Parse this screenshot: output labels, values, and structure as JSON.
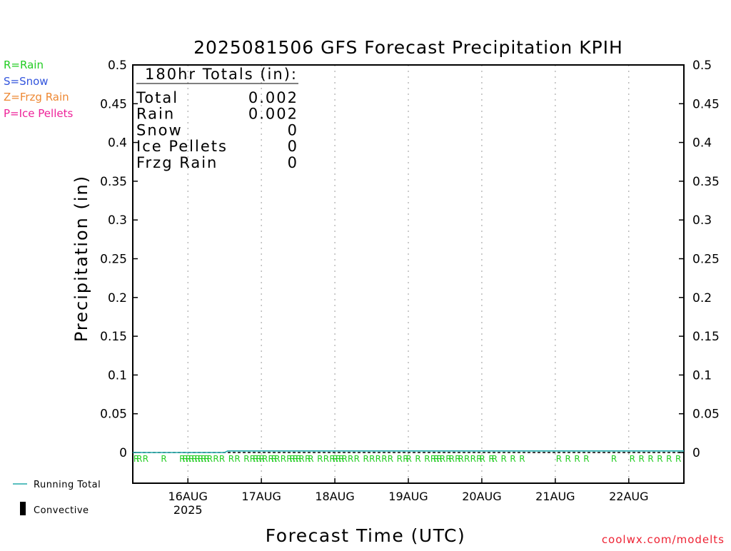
{
  "chart_data": {
    "type": "line",
    "title": "2025081506 GFS Forecast Precipitation KPIH",
    "xlabel": "Forecast Time (UTC)",
    "ylabel": "Precipitation (in)",
    "ylim": [
      0,
      0.5
    ],
    "y_ticks": [
      "0",
      "0.05",
      "0.1",
      "0.15",
      "0.2",
      "0.25",
      "0.3",
      "0.35",
      "0.4",
      "0.45",
      "0.5"
    ],
    "x_range_days": [
      "2025-08-15T06",
      "2025-08-22T18"
    ],
    "x_ticks": [
      {
        "label": "16AUG",
        "sub": "2025",
        "day": 16
      },
      {
        "label": "17AUG",
        "sub": "",
        "day": 17
      },
      {
        "label": "18AUG",
        "sub": "",
        "day": 18
      },
      {
        "label": "19AUG",
        "sub": "",
        "day": 19
      },
      {
        "label": "20AUG",
        "sub": "",
        "day": 20
      },
      {
        "label": "21AUG",
        "sub": "",
        "day": 21
      },
      {
        "label": "22AUG",
        "sub": "",
        "day": 22
      }
    ],
    "grid": "vertical dotted",
    "legend_position": "left",
    "legend": [
      {
        "label": "R=Rain",
        "color": "#22cc22"
      },
      {
        "label": "S=Snow",
        "color": "#3355dd"
      },
      {
        "label": "Z=Frzg Rain",
        "color": "#ee8833"
      },
      {
        "label": "P=Ice Pellets",
        "color": "#ee2299"
      }
    ],
    "series": [
      {
        "name": "Running Total",
        "color": "#22aaaa",
        "x": [
          "2025-08-15T06",
          "2025-08-16T12",
          "2025-08-16T13",
          "2025-08-22T18"
        ],
        "values": [
          0,
          0,
          0.002,
          0.002
        ]
      },
      {
        "name": "Convective",
        "color": "#000000",
        "values": []
      }
    ],
    "totals_box": {
      "header": "180hr Totals (in):",
      "rows": [
        {
          "label": "Total",
          "value": "0.002"
        },
        {
          "label": "Rain",
          "value": "0.002"
        },
        {
          "label": "Snow",
          "value": "0"
        },
        {
          "label": "Ice Pellets",
          "value": "0"
        },
        {
          "label": "Frzg Rain",
          "value": "0"
        }
      ]
    },
    "ptype_marker": "R",
    "ptype_marker_color": "#22cc22",
    "ptype_rain_times": [
      "2025-08-15T06",
      "2025-08-15T07",
      "2025-08-15T09",
      "2025-08-15T15",
      "2025-08-15T21",
      "2025-08-15T22",
      "2025-08-15T23",
      "2025-08-16T00",
      "2025-08-16T01",
      "2025-08-16T02",
      "2025-08-16T03",
      "2025-08-16T04",
      "2025-08-16T05",
      "2025-08-16T06",
      "2025-08-16T08",
      "2025-08-16T10",
      "2025-08-16T13",
      "2025-08-16T15",
      "2025-08-16T18",
      "2025-08-16T20",
      "2025-08-16T21",
      "2025-08-16T22",
      "2025-08-16T23",
      "2025-08-17T00",
      "2025-08-17T02",
      "2025-08-17T03",
      "2025-08-17T04",
      "2025-08-17T06",
      "2025-08-17T08",
      "2025-08-17T09",
      "2025-08-17T10",
      "2025-08-17T11",
      "2025-08-17T12",
      "2025-08-17T14",
      "2025-08-17T15",
      "2025-08-17T18",
      "2025-08-17T20",
      "2025-08-17T22",
      "2025-08-17T23",
      "2025-08-18T00",
      "2025-08-18T01",
      "2025-08-18T02",
      "2025-08-18T04",
      "2025-08-18T06",
      "2025-08-18T09",
      "2025-08-18T11",
      "2025-08-18T13",
      "2025-08-18T15",
      "2025-08-18T17",
      "2025-08-18T20",
      "2025-08-18T22",
      "2025-08-18T23",
      "2025-08-19T02",
      "2025-08-19T05",
      "2025-08-19T07",
      "2025-08-19T08",
      "2025-08-19T09",
      "2025-08-19T10",
      "2025-08-19T12",
      "2025-08-19T13",
      "2025-08-19T15",
      "2025-08-19T16",
      "2025-08-19T18",
      "2025-08-19T20",
      "2025-08-19T22",
      "2025-08-19T23",
      "2025-08-20T02",
      "2025-08-20T03",
      "2025-08-20T06",
      "2025-08-20T09",
      "2025-08-20T12",
      "2025-08-21T00",
      "2025-08-21T03",
      "2025-08-21T06",
      "2025-08-21T09",
      "2025-08-21T18",
      "2025-08-22T00",
      "2025-08-22T03",
      "2025-08-22T06",
      "2025-08-22T09",
      "2025-08-22T12",
      "2025-08-22T15"
    ],
    "bottom_legend": [
      {
        "label": "Running Total",
        "color": "#22aaaa",
        "kind": "line"
      },
      {
        "label": "Convective",
        "color": "#000000",
        "kind": "bar"
      }
    ]
  },
  "credit": {
    "text": "coolwx.com/modelts",
    "color": "#ee2233"
  }
}
